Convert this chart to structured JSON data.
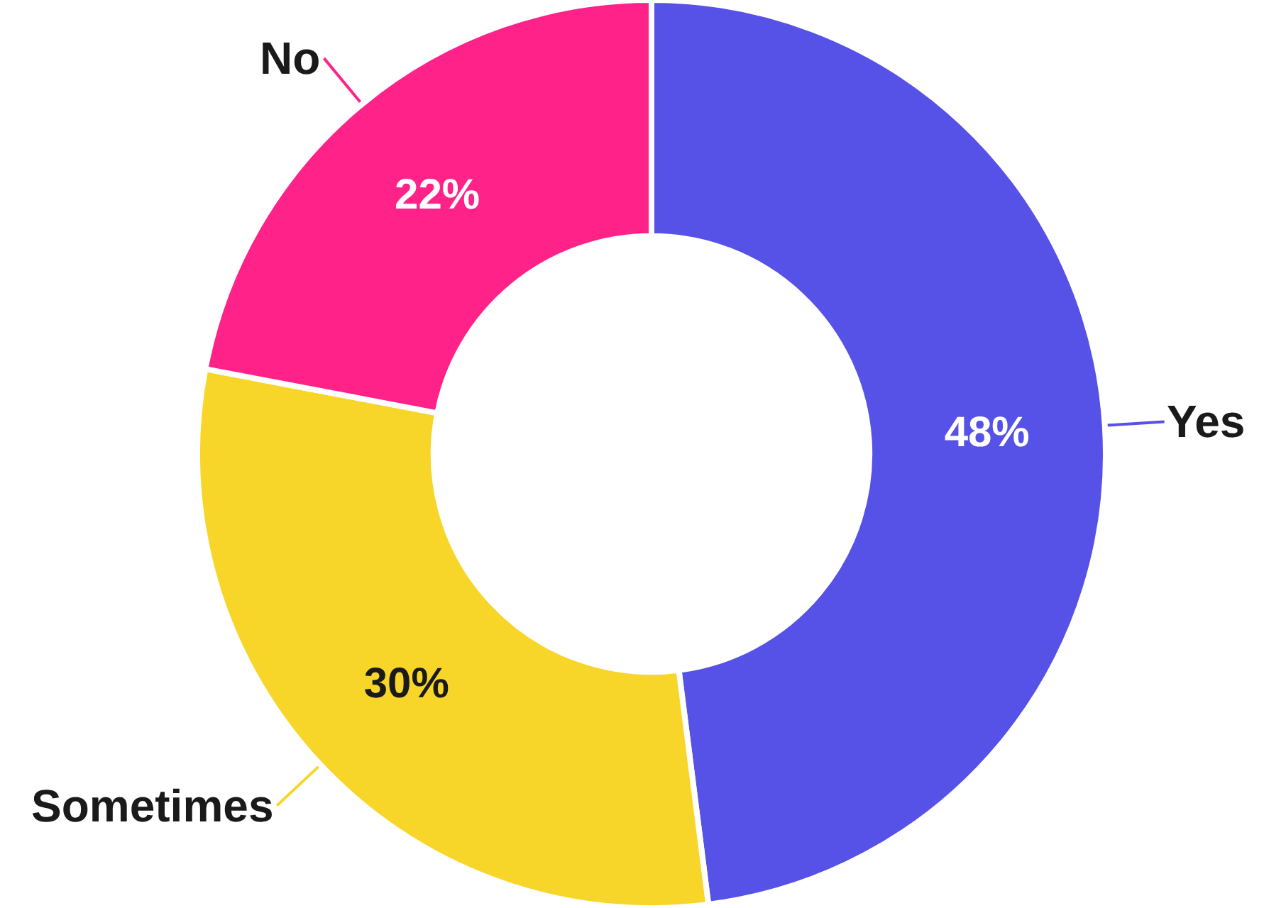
{
  "chart_data": {
    "type": "donut",
    "categories": [
      "Yes",
      "Sometimes",
      "No"
    ],
    "values": [
      48,
      30,
      22
    ],
    "colors": [
      "#5652e8",
      "#f8d629",
      "#ff2288"
    ],
    "value_labels": [
      "48%",
      "30%",
      "22%"
    ],
    "legend": false
  }
}
